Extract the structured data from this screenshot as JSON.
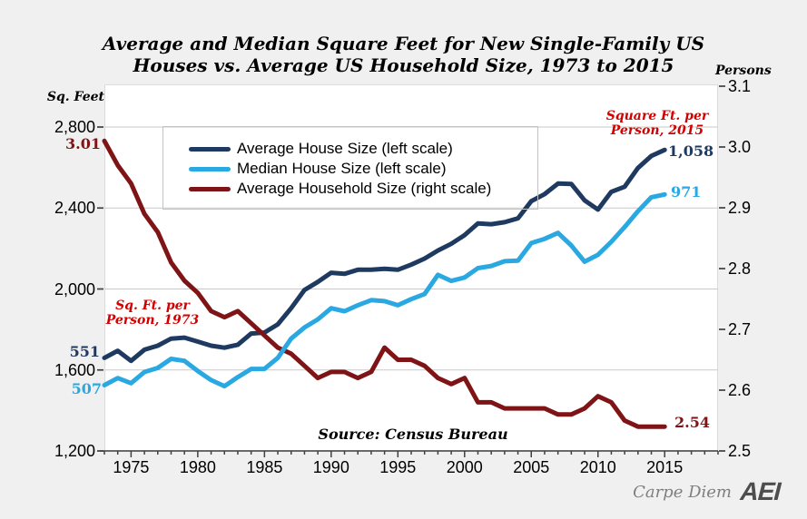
{
  "header": {
    "title_line1": "Average and Median Square Feet for New Single-Family US",
    "title_line2": "Houses vs. Average US Household Size, 1973 to 2015"
  },
  "chart_data": {
    "type": "line",
    "title": "Average and Median Square Feet for New Single-Family US Houses vs. Average US Household Size, 1973 to 2015",
    "x": [
      1973,
      1974,
      1975,
      1976,
      1977,
      1978,
      1979,
      1980,
      1981,
      1982,
      1983,
      1984,
      1985,
      1986,
      1987,
      1988,
      1989,
      1990,
      1991,
      1992,
      1993,
      1994,
      1995,
      1996,
      1997,
      1998,
      1999,
      2000,
      2001,
      2002,
      2003,
      2004,
      2005,
      2006,
      2007,
      2008,
      2009,
      2010,
      2011,
      2012,
      2013,
      2014,
      2015
    ],
    "series": [
      {
        "name": "Average House Size (left scale)",
        "axis": "left",
        "color": "#1f3a60",
        "values": [
          1660,
          1695,
          1645,
          1700,
          1720,
          1755,
          1760,
          1740,
          1720,
          1710,
          1725,
          1780,
          1785,
          1825,
          1905,
          1995,
          2035,
          2080,
          2075,
          2095,
          2095,
          2100,
          2095,
          2120,
          2150,
          2190,
          2223,
          2266,
          2324,
          2320,
          2330,
          2349,
          2434,
          2469,
          2521,
          2519,
          2438,
          2392,
          2480,
          2505,
          2598,
          2657,
          2687
        ]
      },
      {
        "name": "Median House Size (left scale)",
        "axis": "left",
        "color": "#29a8e1",
        "values": [
          1525,
          1560,
          1535,
          1590,
          1610,
          1655,
          1645,
          1595,
          1550,
          1520,
          1565,
          1605,
          1605,
          1660,
          1755,
          1810,
          1850,
          1905,
          1890,
          1920,
          1945,
          1940,
          1920,
          1950,
          1975,
          2070,
          2040,
          2057,
          2103,
          2114,
          2137,
          2140,
          2227,
          2248,
          2277,
          2215,
          2135,
          2169,
          2233,
          2306,
          2384,
          2453,
          2467
        ]
      },
      {
        "name": "Average Household Size (right scale)",
        "axis": "right",
        "color": "#7e1416",
        "values": [
          3.01,
          2.97,
          2.94,
          2.89,
          2.86,
          2.81,
          2.78,
          2.76,
          2.73,
          2.72,
          2.73,
          2.71,
          2.69,
          2.67,
          2.66,
          2.64,
          2.62,
          2.63,
          2.63,
          2.62,
          2.63,
          2.67,
          2.65,
          2.65,
          2.64,
          2.62,
          2.61,
          2.62,
          2.58,
          2.58,
          2.57,
          2.57,
          2.57,
          2.57,
          2.56,
          2.56,
          2.57,
          2.59,
          2.58,
          2.55,
          2.54,
          2.54,
          2.54
        ]
      }
    ],
    "left_axis": {
      "label": "Sq. Feet",
      "min": 1200,
      "max": 2800,
      "ticks": [
        1200,
        1600,
        2000,
        2400,
        2800
      ],
      "tick_labels": [
        "1,200",
        "1,600",
        "2,000",
        "2,400",
        "2,800"
      ]
    },
    "right_axis": {
      "label": "Persons",
      "min": 2.5,
      "max": 3.1,
      "ticks": [
        "2.5",
        "2.6",
        "2.7",
        "2.8",
        "2.9",
        "3.0",
        "3.1"
      ]
    },
    "x_axis": {
      "min": 1973,
      "max": 2019,
      "major_ticks": [
        1975,
        1980,
        1985,
        1990,
        1995,
        2000,
        2005,
        2010,
        2015
      ]
    },
    "grid": "horizontal",
    "legend_position": "inside-top-left"
  },
  "annotations": {
    "start_household": "3.01",
    "start_avg": "551",
    "start_med": "507",
    "end_avg": "1,058",
    "end_med": "971",
    "end_household": "2.54",
    "callout_1973": [
      "Sq. Ft. per",
      "Person, 1973"
    ],
    "callout_2015": [
      "Square Ft. per",
      "Person, 2015"
    ],
    "callout_color": "#d40000"
  },
  "source": "Source: Census Bureau",
  "footer": {
    "credit": "Carpe Diem",
    "logo": "AEI"
  },
  "colors": {
    "background": "#f0f0f1",
    "plot_background": "#ffffff",
    "gridline": "#c9c9c9",
    "axis": "#404040",
    "avg_line": "#1f3a60",
    "median_line": "#29a8e1",
    "household_line": "#7e1416"
  }
}
